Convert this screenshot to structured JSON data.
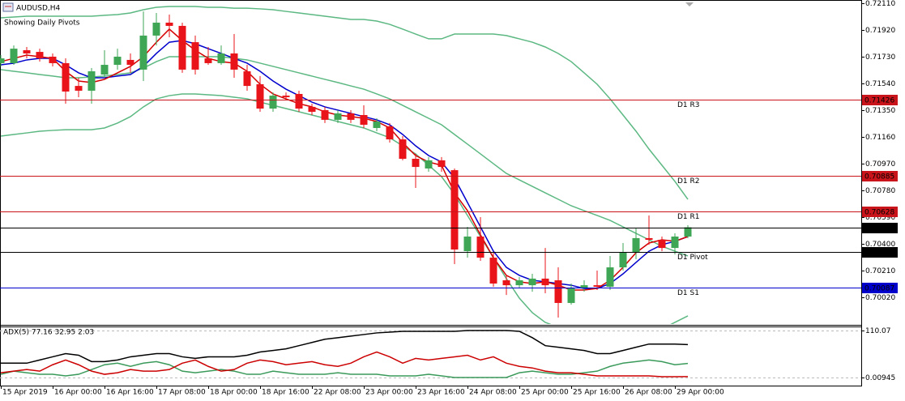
{
  "chart_data": [
    {
      "type": "candlestick",
      "title": "AUDUSD,H4",
      "subtitle": "Showing Daily Pivots",
      "categories": [
        "15 Apr 2019",
        null,
        null,
        null,
        "16 Apr 00:00",
        null,
        null,
        null,
        "16 Apr 16:00",
        null,
        null,
        null,
        "17 Apr 08:00",
        null,
        null,
        null,
        "18 Apr 00:00",
        null,
        null,
        null,
        "18 Apr 16:00",
        null,
        null,
        null,
        "22 Apr 08:00",
        null,
        null,
        null,
        "23 Apr 00:00",
        null,
        null,
        null,
        "23 Apr 16:00",
        null,
        null,
        null,
        "24 Apr 08:00",
        null,
        null,
        null,
        "25 Apr 00:00",
        null,
        null,
        null,
        "25 Apr 16:00",
        null,
        null,
        null,
        "26 Apr 08:00",
        null,
        null,
        null,
        "29 Apr 00:00",
        null
      ],
      "open": [
        0.71684,
        0.71684,
        0.71776,
        0.71764,
        0.7173,
        0.71684,
        0.71522,
        0.71488,
        0.71603,
        0.71672,
        0.71707,
        0.71638,
        0.7188,
        0.71972,
        0.71949,
        0.71833,
        0.71718,
        0.71684,
        0.71753,
        0.71626,
        0.71534,
        0.71361,
        0.71453,
        0.71465,
        0.71373,
        0.7135,
        0.71281,
        0.71327,
        0.71315,
        0.71223,
        0.71235,
        0.71142,
        0.71004,
        0.70935,
        0.70993,
        0.70923,
        0.70347,
        0.70451,
        0.70301,
        0.7014,
        0.70105,
        0.70105,
        0.70152,
        0.7014,
        0.69979,
        0.70082,
        0.70105,
        0.70094,
        0.70232,
        0.70336,
        0.7044,
        0.70428,
        0.7037,
        0.70451
      ],
      "high": [
        0.71741,
        0.7181,
        0.71799,
        0.71787,
        0.71753,
        0.71718,
        0.7158,
        0.71649,
        0.71776,
        0.71787,
        0.71753,
        0.72052,
        0.72041,
        0.72029,
        0.71972,
        0.7188,
        0.71799,
        0.7181,
        0.71891,
        0.71672,
        0.71592,
        0.71476,
        0.71476,
        0.71488,
        0.71396,
        0.71373,
        0.7135,
        0.7135,
        0.71384,
        0.71292,
        0.71258,
        0.71165,
        0.71039,
        0.71016,
        0.71016,
        0.70935,
        0.7052,
        0.70589,
        0.70336,
        0.70175,
        0.70163,
        0.70186,
        0.7037,
        0.70232,
        0.70117,
        0.7014,
        0.70209,
        0.70313,
        0.70405,
        0.70509,
        0.70601,
        0.70451,
        0.70474,
        0.70532
      ],
      "low": [
        0.71661,
        0.71672,
        0.71718,
        0.71695,
        0.71661,
        0.71396,
        0.71442,
        0.71396,
        0.7158,
        0.71638,
        0.71615,
        0.71557,
        0.7181,
        0.71868,
        0.71615,
        0.71603,
        0.71672,
        0.71672,
        0.7158,
        0.71488,
        0.71338,
        0.71338,
        0.71419,
        0.71338,
        0.71315,
        0.71258,
        0.71258,
        0.71258,
        0.71223,
        0.712,
        0.71119,
        0.70993,
        0.70797,
        0.70912,
        0.70912,
        0.70255,
        0.70301,
        0.70278,
        0.70094,
        0.70036,
        0.70082,
        0.70059,
        0.70048,
        0.69875,
        0.69967,
        0.70059,
        0.70071,
        0.70071,
        0.70209,
        0.7029,
        0.70393,
        0.70347,
        0.70324,
        0.7044
      ],
      "close": [
        0.71718,
        0.71787,
        0.71753,
        0.71718,
        0.71684,
        0.71482,
        0.71488,
        0.71626,
        0.71672,
        0.7173,
        0.71672,
        0.7188,
        0.71972,
        0.71949,
        0.71638,
        0.71638,
        0.71684,
        0.71753,
        0.71638,
        0.71522,
        0.71361,
        0.71453,
        0.71442,
        0.71361,
        0.71338,
        0.71281,
        0.71327,
        0.71281,
        0.71246,
        0.71269,
        0.71142,
        0.71004,
        0.70946,
        0.70993,
        0.70946,
        0.70359,
        0.70451,
        0.70301,
        0.70117,
        0.70105,
        0.7014,
        0.70152,
        0.70105,
        0.69979,
        0.70082,
        0.70105,
        0.70094,
        0.70232,
        0.70336,
        0.7044,
        0.70428,
        0.7037,
        0.70451,
        0.70517
      ],
      "up_color": "#3ea654",
      "down_color": "#e8141a",
      "series": [
        {
          "color": "#5cb882",
          "values": [
            0.72006,
            0.72012,
            0.72018,
            0.72018,
            0.72018,
            0.72018,
            0.72018,
            0.72018,
            0.72024,
            0.72029,
            0.72041,
            0.72064,
            0.72081,
            0.72087,
            0.72087,
            0.72087,
            0.72081,
            0.72081,
            0.72075,
            0.72075,
            0.7207,
            0.72064,
            0.72052,
            0.72041,
            0.72029,
            0.72018,
            0.72006,
            0.71995,
            0.71995,
            0.71983,
            0.7196,
            0.71926,
            0.71891,
            0.71857,
            0.71857,
            0.71891,
            0.71891,
            0.71891,
            0.71891,
            0.7188,
            0.71857,
            0.71833,
            0.71799,
            0.71753,
            0.71695,
            0.71615,
            0.71534,
            0.7143,
            0.71315,
            0.712,
            0.71073,
            0.70958,
            0.70843,
            0.70716
          ]
        },
        {
          "color": "#5cb882",
          "values": [
            0.71638,
            0.71626,
            0.71615,
            0.71603,
            0.71592,
            0.7158,
            0.7158,
            0.71586,
            0.71592,
            0.71603,
            0.71615,
            0.71649,
            0.71695,
            0.7173,
            0.7173,
            0.7173,
            0.7173,
            0.7173,
            0.71718,
            0.71707,
            0.71684,
            0.71661,
            0.71638,
            0.71615,
            0.71592,
            0.71569,
            0.71546,
            0.71522,
            0.71499,
            0.71465,
            0.7143,
            0.71384,
            0.71338,
            0.71292,
            0.71246,
            0.71177,
            0.71108,
            0.71039,
            0.70969,
            0.709,
            0.70854,
            0.70808,
            0.70762,
            0.70716,
            0.7067,
            0.70635,
            0.70601,
            0.70566,
            0.7052,
            0.70474,
            0.70428,
            0.70382,
            0.70347,
            0.70313
          ]
        },
        {
          "color": "#5cb882",
          "values": [
            0.71165,
            0.71177,
            0.71188,
            0.712,
            0.71206,
            0.71211,
            0.71211,
            0.71211,
            0.71223,
            0.71258,
            0.71304,
            0.71373,
            0.7143,
            0.71453,
            0.71465,
            0.71465,
            0.71459,
            0.71453,
            0.71442,
            0.7143,
            0.71407,
            0.71384,
            0.71361,
            0.71338,
            0.71315,
            0.71292,
            0.71269,
            0.71246,
            0.71223,
            0.71188,
            0.71154,
            0.71096,
            0.71039,
            0.70958,
            0.70877,
            0.70751,
            0.70601,
            0.70451,
            0.70301,
            0.70152,
            0.70013,
            0.6991,
            0.69841,
            0.69806,
            0.69771,
            0.69748,
            0.69737,
            0.69737,
            0.69748,
            0.6976,
            0.69771,
            0.69794,
            0.69841,
            0.69887
          ]
        },
        {
          "color": "#0000cc",
          "values": [
            0.71672,
            0.71684,
            0.71707,
            0.71718,
            0.71718,
            0.71672,
            0.71615,
            0.7158,
            0.7158,
            0.71592,
            0.71603,
            0.71661,
            0.71753,
            0.71833,
            0.71845,
            0.71822,
            0.71787,
            0.71753,
            0.71718,
            0.71684,
            0.71626,
            0.71557,
            0.71499,
            0.71453,
            0.71407,
            0.71373,
            0.7135,
            0.71327,
            0.71304,
            0.71281,
            0.71246,
            0.71177,
            0.71096,
            0.71027,
            0.70981,
            0.70866,
            0.70693,
            0.7052,
            0.70347,
            0.70232,
            0.70175,
            0.7014,
            0.70129,
            0.70117,
            0.70105,
            0.70082,
            0.70082,
            0.70117,
            0.70186,
            0.70267,
            0.70347,
            0.70393,
            0.70417,
            0.70451
          ]
        },
        {
          "color": "#d40000",
          "values": [
            0.71695,
            0.71718,
            0.71741,
            0.7173,
            0.71718,
            0.71626,
            0.71557,
            0.71546,
            0.71569,
            0.71615,
            0.71661,
            0.7173,
            0.71833,
            0.71926,
            0.71845,
            0.71776,
            0.71718,
            0.71695,
            0.71684,
            0.71626,
            0.71534,
            0.71465,
            0.7143,
            0.71396,
            0.71373,
            0.71338,
            0.71315,
            0.71304,
            0.71292,
            0.71269,
            0.71223,
            0.71119,
            0.71027,
            0.70981,
            0.70958,
            0.70762,
            0.70635,
            0.70463,
            0.70301,
            0.70175,
            0.70129,
            0.70117,
            0.70129,
            0.70105,
            0.70071,
            0.70071,
            0.70082,
            0.7014,
            0.70232,
            0.70336,
            0.70405,
            0.70428,
            0.70417,
            0.70451
          ]
        }
      ],
      "levels": [
        {
          "name": "D1 R3",
          "value": 0.71426,
          "color": "#c8141a"
        },
        {
          "name": "D1 R2",
          "value": 0.70885,
          "color": "#c8141a"
        },
        {
          "name": "D1 R1",
          "value": 0.70628,
          "color": "#c8141a"
        },
        {
          "value": 0.70517,
          "color": "#000000"
        },
        {
          "name": "D1 Pivot",
          "value": 0.70344,
          "color": "#000000"
        },
        {
          "name": "D1 S1",
          "value": 0.70087,
          "color": "#0000cc"
        }
      ],
      "ylim": [
        0.69829,
        0.72133
      ],
      "yticks": [
        {
          "value": 0.7211,
          "label": "0.72110"
        },
        {
          "value": 0.7192,
          "label": "0.71920"
        },
        {
          "value": 0.7173,
          "label": "0.71730"
        },
        {
          "value": 0.7154,
          "label": "0.71540"
        },
        {
          "value": 0.7135,
          "label": "0.71350"
        },
        {
          "value": 0.7116,
          "label": "0.71160"
        },
        {
          "value": 0.7097,
          "label": "0.70970"
        },
        {
          "value": 0.7078,
          "label": "0.70780"
        },
        {
          "value": 0.7059,
          "label": "0.70590"
        },
        {
          "value": 0.704,
          "label": "0.70400"
        },
        {
          "value": 0.7021,
          "label": "0.70210"
        },
        {
          "value": 0.7002,
          "label": "0.70020"
        }
      ]
    },
    {
      "type": "line",
      "title": "ADX(5) 77.16 32.95 2.03",
      "series": [
        {
          "color": "#000000",
          "values": [
            33.6,
            33.6,
            33.6,
            41.0,
            48.5,
            56.0,
            52.2,
            37.3,
            37.3,
            41.0,
            48.5,
            52.2,
            56.0,
            56.0,
            48.5,
            44.8,
            48.5,
            48.5,
            48.5,
            52.2,
            59.7,
            63.4,
            67.2,
            74.6,
            82.1,
            89.6,
            93.3,
            97.0,
            100.7,
            104.5,
            106.3,
            108.2,
            108.2,
            108.2,
            108.2,
            108.2,
            110.1,
            110.1,
            110.1,
            110.1,
            108.2,
            93.3,
            74.6,
            70.9,
            67.2,
            63.4,
            56.0,
            56.0,
            63.4,
            70.9,
            78.4,
            78.4,
            78.4,
            77.16
          ]
        },
        {
          "color": "#3a9a5a",
          "values": [
            7.5,
            14.9,
            11.2,
            7.5,
            7.5,
            3.7,
            7.5,
            18.7,
            29.9,
            33.6,
            26.1,
            33.6,
            37.3,
            29.9,
            14.9,
            11.2,
            14.9,
            18.7,
            14.9,
            7.5,
            7.5,
            14.9,
            11.2,
            7.5,
            7.5,
            7.5,
            11.2,
            7.5,
            7.5,
            7.5,
            3.7,
            3.7,
            3.7,
            7.5,
            3.7,
            0,
            0,
            0,
            0,
            0,
            11.2,
            14.9,
            11.2,
            7.5,
            7.5,
            11.2,
            14.9,
            26.1,
            33.6,
            37.3,
            41.0,
            37.3,
            29.9,
            32.95
          ]
        },
        {
          "color": "#cc0000",
          "values": [
            11.2,
            14.9,
            18.7,
            14.9,
            29.9,
            41.0,
            29.9,
            14.9,
            7.5,
            11.2,
            18.7,
            14.9,
            14.9,
            18.7,
            33.6,
            41.0,
            26.1,
            14.9,
            18.7,
            33.6,
            41.0,
            37.3,
            29.9,
            33.6,
            37.3,
            29.9,
            26.1,
            33.6,
            48.5,
            59.7,
            48.5,
            33.6,
            44.8,
            41.0,
            44.8,
            48.5,
            52.2,
            41.0,
            48.5,
            33.6,
            26.1,
            22.4,
            14.9,
            11.2,
            11.2,
            7.5,
            3.7,
            3.7,
            3.7,
            3.7,
            3.7,
            1.9,
            1.9,
            2.03
          ]
        }
      ],
      "ylim": [
        0.00945,
        110.07
      ],
      "yticks": [
        110.07,
        0.00945
      ]
    }
  ]
}
